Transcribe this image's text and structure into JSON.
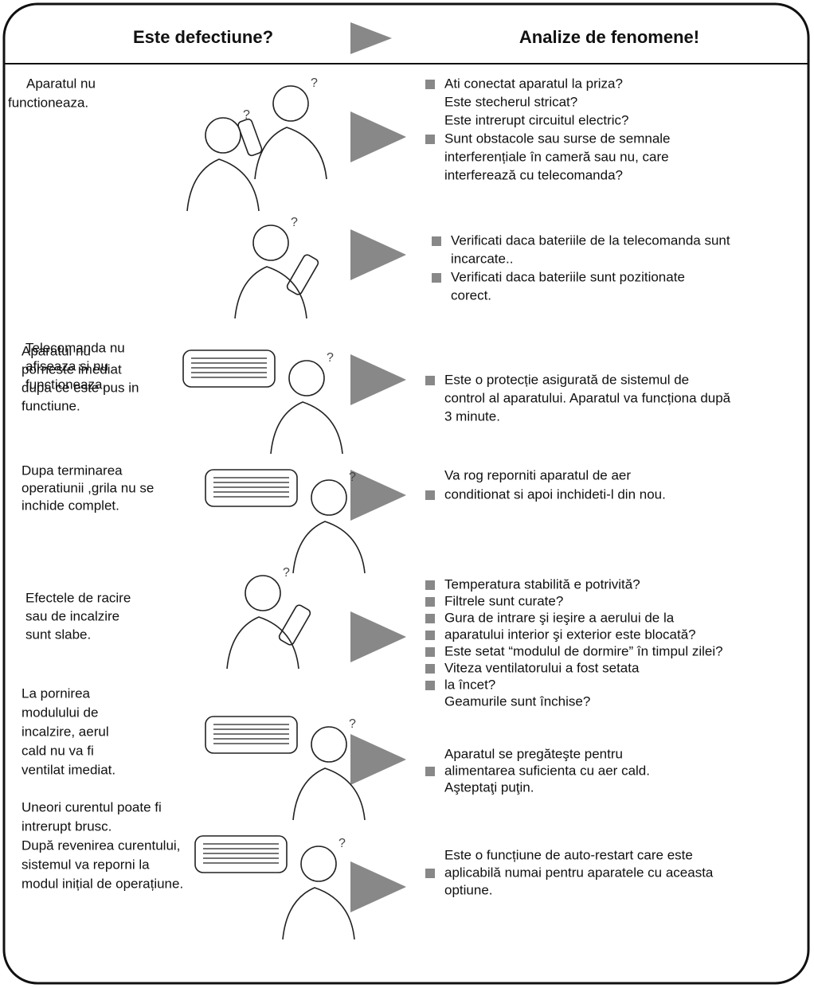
{
  "header": {
    "left": "Este defectiune?",
    "right": "Analize de fenomene!"
  },
  "rows": [
    {
      "problem": [
        "Aparatul nu",
        "functioneaza."
      ],
      "answers": [
        "Ati conectat aparatul la priza?",
        "Este stecherul stricat?",
        "Este intrerupt circuitul electric?",
        "Sunt obstacole sau surse de semnale",
        "interferențiale în cameră sau nu, care",
        "interferează cu telecomanda?"
      ]
    },
    {
      "problem": [
        "Telecomanda nu",
        "afiseaza si nu",
        "functioneaza."
      ],
      "answers": [
        "Verificati daca bateriile de la telecomanda sunt",
        "incarcate..",
        "Verificati daca bateriile sunt pozitionate",
        "corect."
      ]
    },
    {
      "problem": [
        "Aparatul nu",
        "porneste imediat",
        "dupa ce este pus in",
        "functiune."
      ],
      "answers": [
        "Este o protecție asigurată de sistemul de",
        "control al aparatului. Aparatul va funcționa după",
        "3 minute."
      ]
    },
    {
      "problem": [
        "Dupa terminarea",
        "operatiunii ,grila nu se",
        "inchide complet."
      ],
      "answers": [
        "Va rog reporniti aparatul de aer",
        "conditionat si apoi inchideti-l din nou."
      ]
    },
    {
      "problem": [
        "Efectele de racire",
        "sau de incalzire",
        "sunt slabe."
      ],
      "answers": [
        "Temperatura stabilită e potrivită?",
        "Filtrele sunt curate?",
        "Gura de intrare şi ieşire a aerului de la",
        "aparatului interior şi exterior este blocată?",
        "Este setat “modulul de dormire” în timpul zilei?",
        "Viteza ventilatorului  a  fost setata",
        "la încet?",
        "Geamurile sunt închise?"
      ]
    },
    {
      "problem": [
        "La pornirea",
        "modulului de",
        "incalzire, aerul",
        "cald nu va fi",
        "ventilat imediat."
      ],
      "answers": [
        "Aparatul   se pregăteşte pentru",
        "alimentarea suficienta cu aer cald.",
        "Aşteptaţi puţin."
      ]
    },
    {
      "problem": [
        "Uneori curentul poate fi",
        "intrerupt brusc.",
        "După revenirea curentului,",
        "sistemul va reporni la",
        "modul inițial de operațiune."
      ],
      "answers": [
        "Este o funcțiune de auto-restart care este",
        "aplicabilă numai pentru aparatele cu aceasta",
        "optiune."
      ]
    }
  ]
}
